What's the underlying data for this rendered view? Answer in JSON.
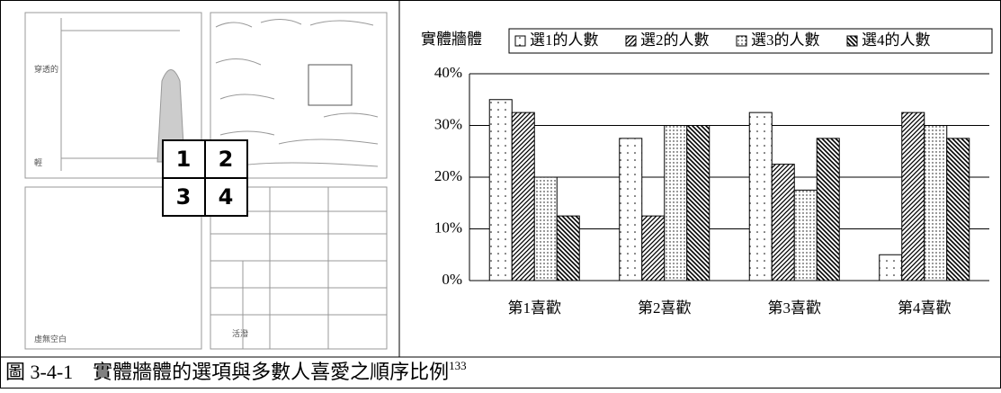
{
  "chart_data": {
    "type": "bar",
    "legend_title": "實體牆體",
    "categories": [
      "第1喜歡",
      "第2喜歡",
      "第3喜歡",
      "第4喜歡"
    ],
    "series": [
      {
        "name": "選1的人數",
        "color": "#000000",
        "pattern": "dots-sparse",
        "values": [
          35,
          27.5,
          32.5,
          5
        ]
      },
      {
        "name": "選2的人數",
        "color": "#000000",
        "pattern": "hatch-forward",
        "values": [
          32.5,
          12.5,
          22.5,
          32.5
        ]
      },
      {
        "name": "選3的人數",
        "color": "#000000",
        "pattern": "dots-dense",
        "values": [
          20,
          30,
          17.5,
          30
        ]
      },
      {
        "name": "選4的人數",
        "color": "#000000",
        "pattern": "hatch-back",
        "values": [
          12.5,
          30,
          27.5,
          27.5
        ]
      }
    ],
    "ylim": [
      0,
      40
    ],
    "yticks": [
      {
        "value": 0,
        "label": "0%"
      },
      {
        "value": 10,
        "label": "10%"
      },
      {
        "value": 20,
        "label": "20%"
      },
      {
        "value": 30,
        "label": "30%"
      },
      {
        "value": 40,
        "label": "40%"
      }
    ],
    "grid": true,
    "legend": "top"
  },
  "image_labels": [
    "穿透的",
    "輕",
    "虛無空白",
    "活潑"
  ],
  "image_numbers": [
    "1",
    "2",
    "3",
    "4"
  ],
  "caption": "圖 3-4-1　實體牆體的選項與多數人喜愛之順序比例",
  "caption_ref": "133"
}
